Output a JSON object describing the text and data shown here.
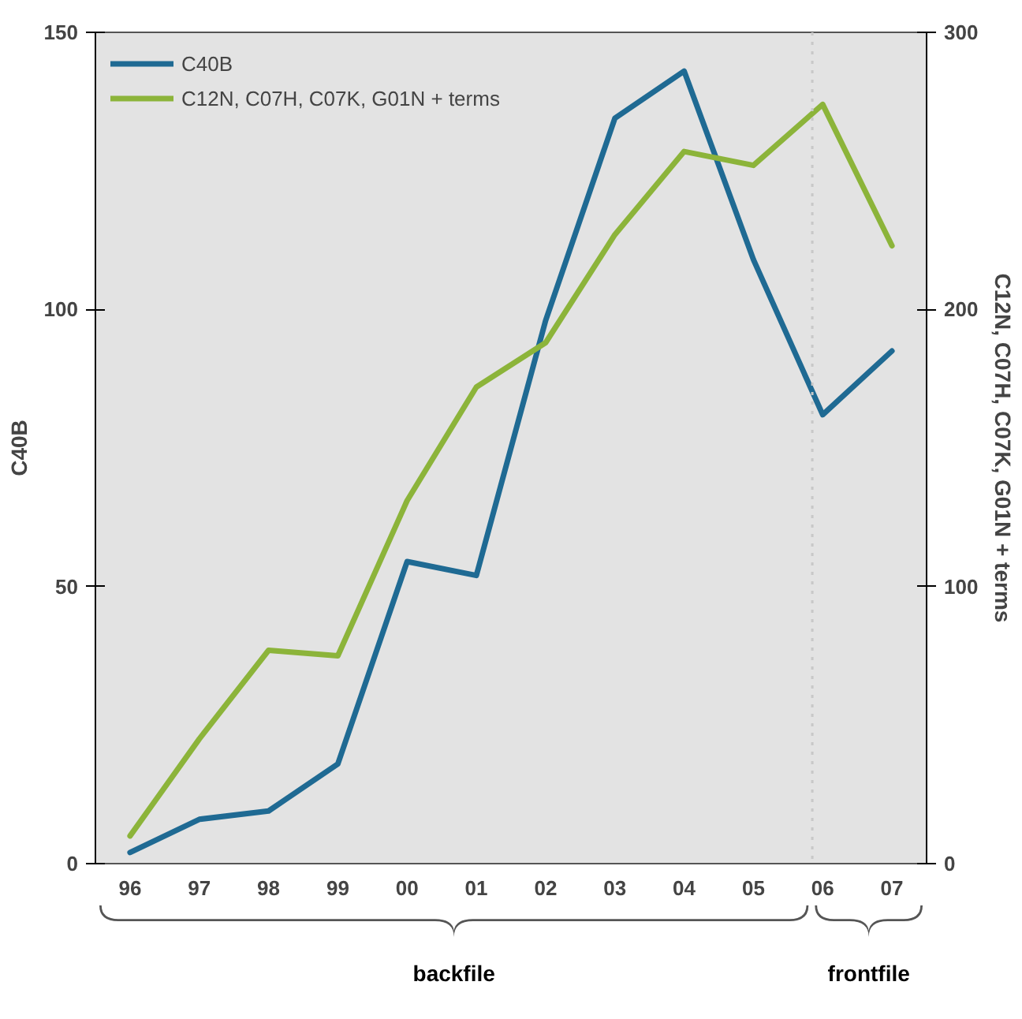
{
  "chart_data": {
    "type": "line",
    "ylabel": "C40B",
    "y2label": "C12N, C07H, C07K, G01N + terms",
    "x": [
      1996,
      1997,
      1998,
      1999,
      2000,
      2001,
      2002,
      2003,
      2004,
      2005,
      2006,
      2007
    ],
    "xlim": [
      1995.5,
      2007.5
    ],
    "xticks": [
      {
        "value": 1996,
        "label": "96"
      },
      {
        "value": 1997,
        "label": "97"
      },
      {
        "value": 1998,
        "label": "98"
      },
      {
        "value": 1999,
        "label": "99"
      },
      {
        "value": 2000,
        "label": "00"
      },
      {
        "value": 2001,
        "label": "01"
      },
      {
        "value": 2002,
        "label": "02"
      },
      {
        "value": 2003,
        "label": "03"
      },
      {
        "value": 2004,
        "label": "04"
      },
      {
        "value": 2005,
        "label": "05"
      },
      {
        "value": 2006,
        "label": "06"
      },
      {
        "value": 2007,
        "label": "07"
      }
    ],
    "ylim": [
      0,
      150
    ],
    "yticks": [
      0,
      50,
      100,
      150
    ],
    "y2lim": [
      0,
      300
    ],
    "y2ticks": [
      0,
      100,
      200,
      300
    ],
    "series": [
      {
        "name": "C40B",
        "color": "#1f6a93",
        "values": [
          2,
          8,
          9.5,
          18,
          54.5,
          52,
          98,
          134.5,
          143,
          109,
          81,
          92.5
        ]
      },
      {
        "name": "C12N, C07H, C07K, G01N + terms",
        "color": "#8cb43a",
        "axis": "y2",
        "values": [
          10,
          45,
          77,
          75,
          131,
          172,
          188,
          227,
          257,
          252,
          274,
          223
        ]
      }
    ],
    "ref_lines": [
      {
        "axis": "x",
        "value": 2005.85,
        "color": "#c8c8c8",
        "line_style": "dotted"
      }
    ],
    "annotations": [
      "backfile",
      "frontfile"
    ],
    "grid": false,
    "legend": "top left"
  }
}
